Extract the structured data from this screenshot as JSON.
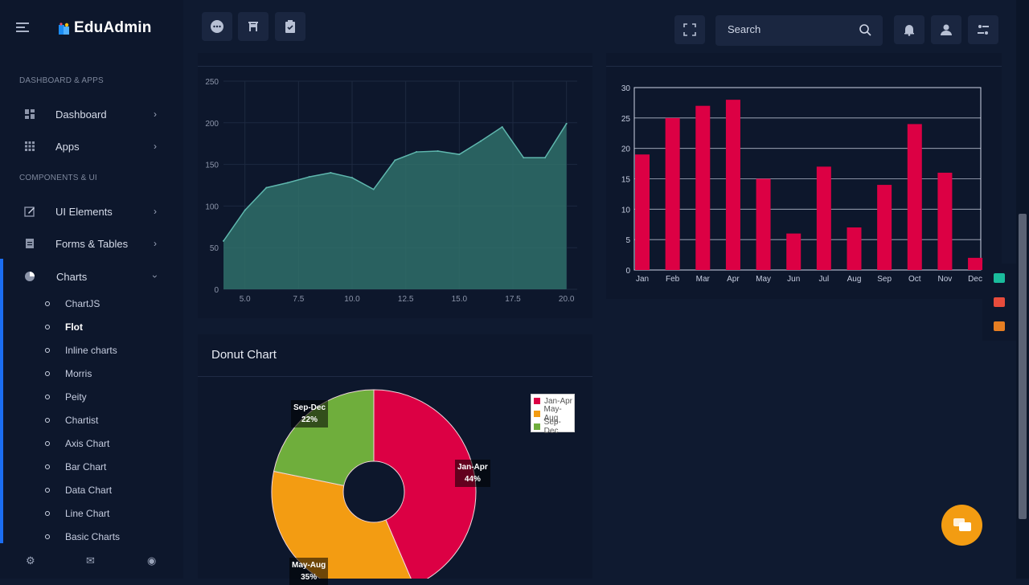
{
  "brand": {
    "name": "EduAdmin"
  },
  "sidebar": {
    "sections": [
      {
        "title": "DASHBOARD & APPS"
      },
      {
        "title": "COMPONENTS & UI"
      }
    ],
    "items": [
      {
        "label": "Dashboard",
        "icon": "dashboard-icon"
      },
      {
        "label": "Apps",
        "icon": "grid-icon"
      },
      {
        "label": "UI Elements",
        "icon": "edit-icon"
      },
      {
        "label": "Forms & Tables",
        "icon": "document-icon"
      },
      {
        "label": "Charts",
        "icon": "pie-chart-icon"
      }
    ],
    "submenu": [
      {
        "label": "ChartJS"
      },
      {
        "label": "Flot"
      },
      {
        "label": "Inline charts"
      },
      {
        "label": "Morris"
      },
      {
        "label": "Peity"
      },
      {
        "label": "Chartist"
      },
      {
        "label": "Axis Chart"
      },
      {
        "label": "Bar Chart"
      },
      {
        "label": "Data Chart"
      },
      {
        "label": "Line Chart"
      },
      {
        "label": "Basic Charts"
      }
    ],
    "active_sub": "Flot"
  },
  "header": {
    "search_placeholder": "Search"
  },
  "donut_card": {
    "title": "Donut Chart"
  },
  "accent_colors": {
    "crimson": "#dc0044",
    "orange": "#f39c12",
    "green": "#6fae3c",
    "teal": "#2f6e6a",
    "blue": "#1b6ef3"
  },
  "chart_data": [
    {
      "type": "area",
      "x": [
        4,
        5,
        6,
        7,
        8,
        9,
        10,
        11,
        12,
        13,
        14,
        15,
        16,
        17,
        18,
        19,
        20
      ],
      "values": [
        58,
        95,
        122,
        128,
        135,
        140,
        134,
        120,
        155,
        165,
        166,
        162,
        178,
        195,
        158,
        158,
        199
      ],
      "xticks": [
        "5.0",
        "7.5",
        "10.0",
        "12.5",
        "15.0",
        "17.5",
        "20.0"
      ],
      "yticks": [
        "0",
        "50",
        "100",
        "150",
        "200",
        "250"
      ],
      "xlim": [
        4,
        20.5
      ],
      "ylim": [
        0,
        250
      ],
      "grid": true,
      "title": "",
      "xlabel": "",
      "ylabel": ""
    },
    {
      "type": "bar",
      "categories": [
        "Jan",
        "Feb",
        "Mar",
        "Apr",
        "May",
        "Jun",
        "Jul",
        "Aug",
        "Sep",
        "Oct",
        "Nov",
        "Dec"
      ],
      "values": [
        19,
        25,
        27,
        28,
        15,
        6,
        17,
        7,
        14,
        24,
        16,
        2
      ],
      "yticks": [
        "0",
        "5",
        "10",
        "15",
        "20",
        "25",
        "30"
      ],
      "ylim": [
        0,
        30
      ],
      "grid": true,
      "title": "",
      "xlabel": "",
      "ylabel": ""
    },
    {
      "type": "pie",
      "donut": true,
      "categories": [
        "Jan-Apr",
        "May-Aug",
        "Sep-Dec"
      ],
      "values": [
        44,
        35,
        22
      ],
      "labels": [
        "44%",
        "35%",
        "22%"
      ],
      "legend_position": "top-right",
      "title": "Donut Chart"
    }
  ]
}
